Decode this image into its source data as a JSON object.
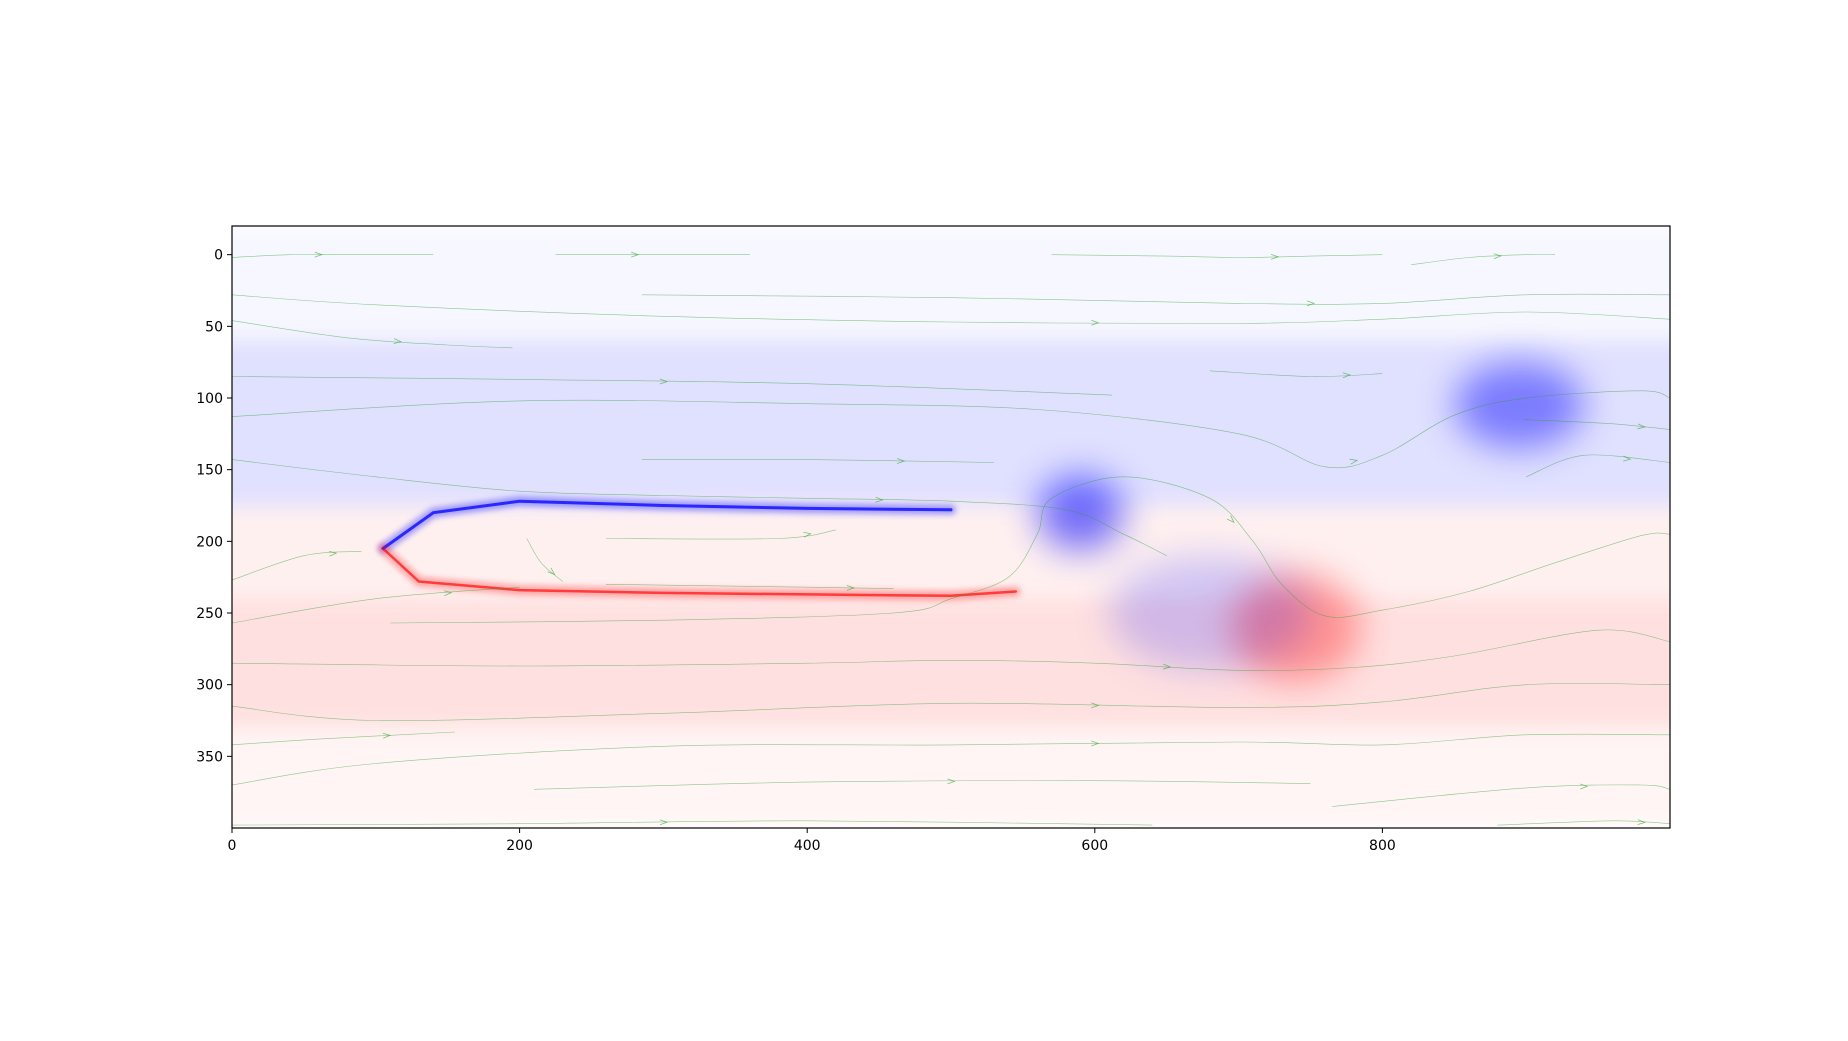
{
  "chart_data": {
    "type": "heatmap",
    "title": "",
    "xlabel": "",
    "ylabel": "",
    "description_kind": "vorticity field with streamlines (flow past a plate)",
    "colormap": {
      "negative": "#0000ff",
      "zero": "#ffffff",
      "positive": "#ff0000"
    },
    "streamline_color": "#2ca02c",
    "xlim": [
      0,
      1000
    ],
    "ylim": [
      400,
      -20
    ],
    "x_ticks": [
      0,
      200,
      400,
      600,
      800
    ],
    "x_tick_labels": [
      "0",
      "200",
      "400",
      "600",
      "800"
    ],
    "y_ticks": [
      0,
      50,
      100,
      150,
      200,
      250,
      300,
      350
    ],
    "y_tick_labels": [
      "0",
      "50",
      "100",
      "150",
      "200",
      "250",
      "300",
      "350"
    ],
    "vortex_blobs": [
      {
        "x": 590,
        "y": 180,
        "rx": 30,
        "ry": 26,
        "sign": -1,
        "strength": 0.55
      },
      {
        "x": 895,
        "y": 105,
        "rx": 45,
        "ry": 30,
        "sign": -1,
        "strength": 0.45
      },
      {
        "x": 740,
        "y": 260,
        "rx": 45,
        "ry": 38,
        "sign": 1,
        "strength": 0.35
      },
      {
        "x": 680,
        "y": 250,
        "rx": 70,
        "ry": 40,
        "sign": -1,
        "strength": 0.18
      }
    ],
    "background_bands": [
      {
        "y0": -20,
        "y1": 60,
        "sign": -1,
        "strength": 0.03
      },
      {
        "y0": 60,
        "y1": 175,
        "sign": -1,
        "strength": 0.12
      },
      {
        "y0": 175,
        "y1": 240,
        "sign": 1,
        "strength": 0.06
      },
      {
        "y0": 240,
        "y1": 330,
        "sign": 1,
        "strength": 0.12
      },
      {
        "y0": 330,
        "y1": 400,
        "sign": 1,
        "strength": 0.04
      }
    ],
    "shear_layer": {
      "upper": [
        [
          105,
          205
        ],
        [
          140,
          180
        ],
        [
          200,
          172
        ],
        [
          300,
          175
        ],
        [
          400,
          177
        ],
        [
          500,
          178
        ]
      ],
      "lower": [
        [
          105,
          205
        ],
        [
          130,
          228
        ],
        [
          200,
          234
        ],
        [
          300,
          236
        ],
        [
          400,
          237
        ],
        [
          500,
          238
        ],
        [
          545,
          235
        ]
      ]
    },
    "streamlines": [
      [
        [
          0,
          2
        ],
        [
          40,
          0
        ],
        [
          80,
          0
        ],
        [
          140,
          0
        ]
      ],
      [
        [
          225,
          0
        ],
        [
          260,
          0
        ],
        [
          300,
          0
        ],
        [
          360,
          0
        ]
      ],
      [
        [
          570,
          0
        ],
        [
          650,
          1
        ],
        [
          700,
          2
        ],
        [
          750,
          1
        ],
        [
          800,
          0
        ]
      ],
      [
        [
          820,
          7
        ],
        [
          860,
          2
        ],
        [
          900,
          0
        ],
        [
          920,
          0
        ]
      ],
      [
        [
          0,
          28
        ],
        [
          100,
          35
        ],
        [
          300,
          43
        ],
        [
          500,
          47
        ],
        [
          700,
          48
        ],
        [
          800,
          45
        ],
        [
          900,
          40
        ],
        [
          1000,
          45
        ]
      ],
      [
        [
          285,
          28
        ],
        [
          500,
          30
        ],
        [
          700,
          34
        ],
        [
          800,
          34
        ],
        [
          900,
          28
        ],
        [
          1000,
          28
        ]
      ],
      [
        [
          0,
          46
        ],
        [
          80,
          58
        ],
        [
          150,
          63
        ],
        [
          195,
          65
        ]
      ],
      [
        [
          0,
          85
        ],
        [
          200,
          87
        ],
        [
          400,
          90
        ],
        [
          612,
          98
        ]
      ],
      [
        [
          680,
          81
        ],
        [
          750,
          85
        ],
        [
          800,
          83
        ]
      ],
      [
        [
          0,
          113
        ],
        [
          200,
          102
        ],
        [
          400,
          104
        ],
        [
          560,
          108
        ],
        [
          700,
          125
        ],
        [
          760,
          148
        ],
        [
          800,
          140
        ],
        [
          850,
          112
        ],
        [
          900,
          100
        ],
        [
          980,
          95
        ],
        [
          1000,
          100
        ]
      ],
      [
        [
          898,
          115
        ],
        [
          960,
          118
        ],
        [
          1000,
          122
        ]
      ],
      [
        [
          0,
          143
        ],
        [
          100,
          155
        ],
        [
          200,
          165
        ],
        [
          300,
          168
        ],
        [
          400,
          170
        ],
        [
          500,
          172
        ],
        [
          580,
          178
        ],
        [
          620,
          195
        ],
        [
          650,
          210
        ]
      ],
      [
        [
          285,
          143
        ],
        [
          400,
          143
        ],
        [
          530,
          145
        ]
      ],
      [
        [
          900,
          155
        ],
        [
          940,
          140
        ],
        [
          1000,
          145
        ]
      ],
      [
        [
          0,
          227
        ],
        [
          50,
          210
        ],
        [
          90,
          207
        ]
      ],
      [
        [
          0,
          257
        ],
        [
          100,
          240
        ],
        [
          200,
          232
        ]
      ],
      [
        [
          110,
          257
        ],
        [
          300,
          255
        ],
        [
          460,
          250
        ],
        [
          500,
          240
        ],
        [
          540,
          225
        ],
        [
          560,
          195
        ],
        [
          570,
          170
        ],
        [
          620,
          155
        ],
        [
          680,
          170
        ],
        [
          710,
          200
        ],
        [
          730,
          230
        ],
        [
          760,
          252
        ],
        [
          800,
          248
        ],
        [
          860,
          235
        ],
        [
          920,
          215
        ],
        [
          980,
          196
        ],
        [
          1000,
          195
        ]
      ],
      [
        [
          0,
          285
        ],
        [
          200,
          287
        ],
        [
          400,
          285
        ],
        [
          500,
          283
        ],
        [
          600,
          285
        ],
        [
          700,
          290
        ],
        [
          780,
          288
        ],
        [
          850,
          280
        ],
        [
          950,
          262
        ],
        [
          1000,
          270
        ]
      ],
      [
        [
          0,
          315
        ],
        [
          100,
          325
        ],
        [
          300,
          320
        ],
        [
          500,
          313
        ],
        [
          700,
          316
        ],
        [
          800,
          312
        ],
        [
          900,
          300
        ],
        [
          1000,
          300
        ]
      ],
      [
        [
          0,
          370
        ],
        [
          100,
          355
        ],
        [
          300,
          343
        ],
        [
          500,
          342
        ],
        [
          700,
          340
        ],
        [
          800,
          342
        ],
        [
          900,
          335
        ],
        [
          1000,
          335
        ]
      ],
      [
        [
          0,
          342
        ],
        [
          60,
          338
        ],
        [
          155,
          333
        ]
      ],
      [
        [
          210,
          373
        ],
        [
          400,
          368
        ],
        [
          600,
          367
        ],
        [
          750,
          369
        ]
      ],
      [
        [
          765,
          385
        ],
        [
          900,
          372
        ],
        [
          980,
          370
        ],
        [
          1000,
          373
        ]
      ],
      [
        [
          0,
          398
        ],
        [
          200,
          397
        ],
        [
          400,
          395
        ],
        [
          640,
          398
        ]
      ],
      [
        [
          880,
          398
        ],
        [
          960,
          395
        ],
        [
          1000,
          397
        ]
      ],
      [
        [
          260,
          230
        ],
        [
          400,
          232
        ],
        [
          460,
          233
        ]
      ],
      [
        [
          260,
          198
        ],
        [
          380,
          198
        ],
        [
          420,
          192
        ]
      ],
      [
        [
          205,
          198
        ],
        [
          215,
          215
        ],
        [
          230,
          228
        ]
      ]
    ]
  }
}
